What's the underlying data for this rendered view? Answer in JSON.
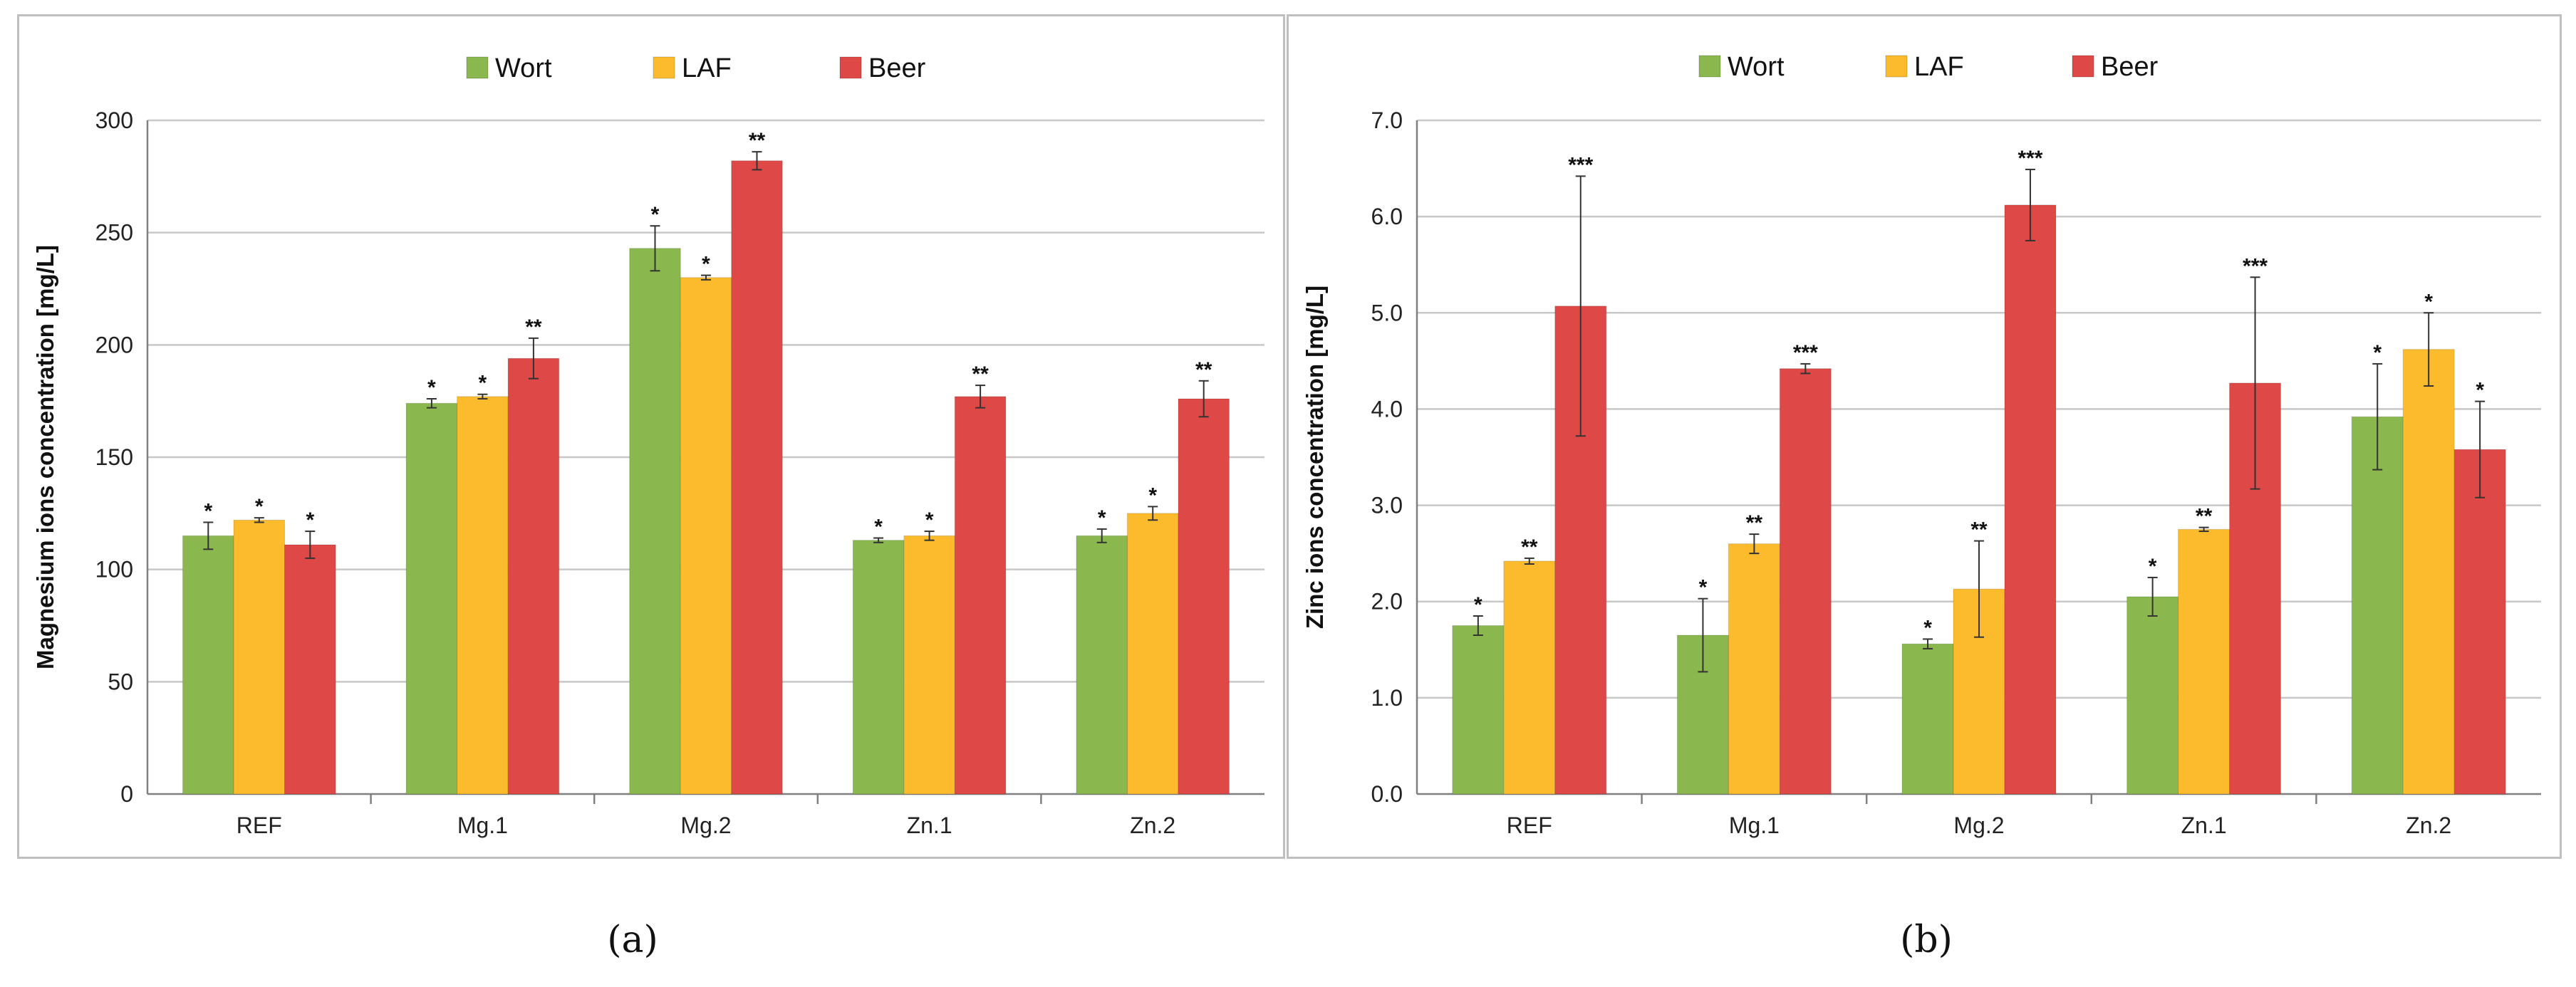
{
  "chart_data": [
    {
      "type": "bar",
      "ylabel": "Magnesium ions concentration [mg/L]",
      "xlabel": "",
      "categories": [
        "REF",
        "Mg.1",
        "Mg.2",
        "Zn.1",
        "Zn.2"
      ],
      "ylim": [
        0,
        300
      ],
      "yticks": [
        "0",
        "50",
        "100",
        "150",
        "200",
        "250",
        "300"
      ],
      "ytick_values": [
        0,
        50,
        100,
        150,
        200,
        250,
        300
      ],
      "grid": true,
      "legend_position": "top-center",
      "series": [
        {
          "name": "Wort",
          "color": "#8ab84e",
          "values": [
            115,
            174,
            243,
            113,
            115
          ],
          "errors": [
            6,
            2,
            10,
            1,
            3
          ],
          "significance": [
            "*",
            "*",
            "*",
            "*",
            "*"
          ]
        },
        {
          "name": "LAF",
          "color": "#fbbb2d",
          "values": [
            122,
            177,
            230,
            115,
            125
          ],
          "errors": [
            1,
            1,
            1,
            2,
            3
          ],
          "significance": [
            "*",
            "*",
            "*",
            "*",
            "*"
          ]
        },
        {
          "name": "Beer",
          "color": "#de4846",
          "values": [
            111,
            194,
            282,
            177,
            176
          ],
          "errors": [
            6,
            9,
            4,
            5,
            8
          ],
          "significance": [
            "*",
            "**",
            "**",
            "**",
            "**"
          ]
        }
      ]
    },
    {
      "type": "bar",
      "ylabel": "Zinc ions concentration [mg/L]",
      "xlabel": "",
      "categories": [
        "REF",
        "Mg.1",
        "Mg.2",
        "Zn.1",
        "Zn.2"
      ],
      "ylim": [
        0,
        7
      ],
      "yticks": [
        "0.0",
        "1.0",
        "2.0",
        "3.0",
        "4.0",
        "5.0",
        "6.0",
        "7.0"
      ],
      "ytick_values": [
        0,
        1,
        2,
        3,
        4,
        5,
        6,
        7
      ],
      "grid": true,
      "legend_position": "top-center",
      "series": [
        {
          "name": "Wort",
          "color": "#8ab84e",
          "values": [
            1.75,
            1.65,
            1.56,
            2.05,
            3.92
          ],
          "errors": [
            0.1,
            0.38,
            0.05,
            0.2,
            0.55
          ],
          "significance": [
            "*",
            "*",
            "*",
            "*",
            "*"
          ]
        },
        {
          "name": "LAF",
          "color": "#fbbb2d",
          "values": [
            2.42,
            2.6,
            2.13,
            2.75,
            4.62
          ],
          "errors": [
            0.03,
            0.1,
            0.5,
            0.02,
            0.38
          ],
          "significance": [
            "**",
            "**",
            "**",
            "**",
            "*"
          ]
        },
        {
          "name": "Beer",
          "color": "#de4846",
          "values": [
            5.07,
            4.42,
            6.12,
            4.27,
            3.58
          ],
          "errors": [
            1.35,
            0.05,
            0.37,
            1.1,
            0.5
          ],
          "significance": [
            "***",
            "***",
            "***",
            "***",
            "*"
          ]
        }
      ]
    }
  ],
  "captions": {
    "a": "(a)",
    "b": "(b)"
  }
}
